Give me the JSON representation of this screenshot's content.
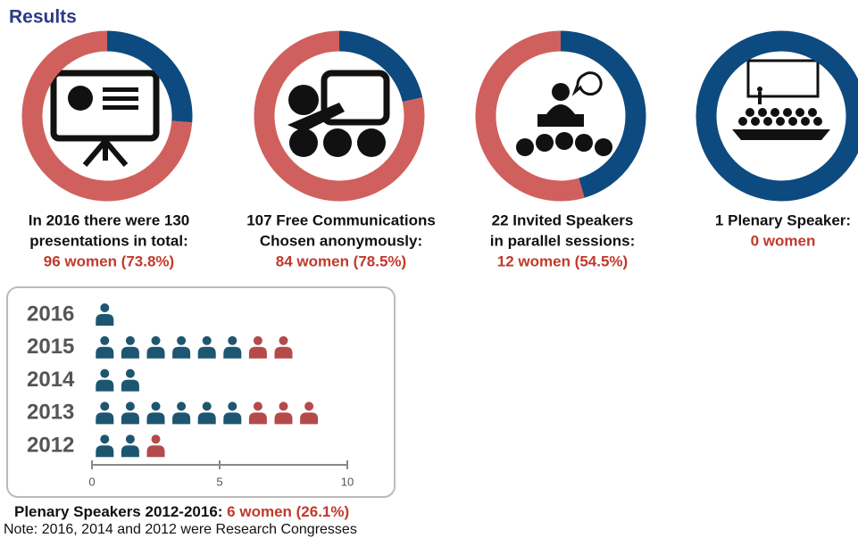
{
  "title": "Results",
  "chart_data": [
    {
      "type": "pie",
      "values": [
        26.2,
        73.8
      ],
      "colors": [
        "#0d4a80",
        "#d0605d"
      ],
      "caption": [
        "In 2016 there were 130",
        "presentations in total:"
      ],
      "highlight": "96 women (73.8%)"
    },
    {
      "type": "pie",
      "values": [
        21.5,
        78.5
      ],
      "colors": [
        "#0d4a80",
        "#d0605d"
      ],
      "caption": [
        "107 Free Communications",
        "Chosen anonymously:"
      ],
      "highlight": "84 women (78.5%)"
    },
    {
      "type": "pie",
      "values": [
        45.5,
        54.5
      ],
      "colors": [
        "#0d4a80",
        "#d0605d"
      ],
      "caption": [
        "22 Invited Speakers",
        "in parallel sessions:"
      ],
      "highlight": "12 women (54.5%)"
    },
    {
      "type": "pie",
      "values": [
        100,
        0
      ],
      "colors": [
        "#0d4a80",
        "#d0605d"
      ],
      "caption": [
        "1 Plenary Speaker:"
      ],
      "highlight": "0 women"
    },
    {
      "type": "pictogram",
      "categories": [
        "2016",
        "2015",
        "2014",
        "2013",
        "2012"
      ],
      "series": [
        {
          "color": "#1d5670",
          "values": [
            1,
            6,
            2,
            6,
            2
          ]
        },
        {
          "color": "#b54a4a",
          "values": [
            0,
            2,
            0,
            3,
            1
          ]
        }
      ],
      "xlim": [
        0,
        10
      ],
      "xticks": [
        0,
        5,
        10
      ]
    }
  ],
  "footer": {
    "text": "Plenary Speakers 2012-2016: ",
    "highlight": "6 women (26.1%)",
    "note": "Note: 2016, 2014 and 2012 were Research Congresses"
  }
}
